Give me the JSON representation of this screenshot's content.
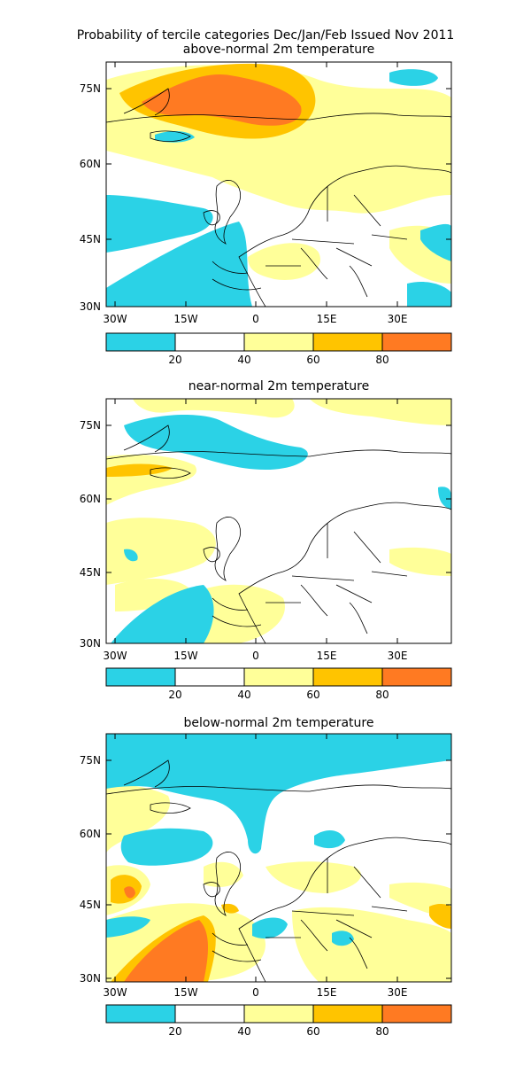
{
  "title": "Probability of tercile categories Dec/Jan/Feb Issued Nov 2011",
  "colors": {
    "cyan": "#2bd2e6",
    "white": "#ffffff",
    "light_yellow": "#ffff99",
    "orange_yellow": "#ffc400",
    "orange": "#ff7a22",
    "coast": "#000000"
  },
  "colorbar": {
    "bins": [
      {
        "color": "#2bd2e6"
      },
      {
        "color": "#ffffff"
      },
      {
        "color": "#ffff99"
      },
      {
        "color": "#ffc400"
      },
      {
        "color": "#ff7a22"
      }
    ],
    "labels": [
      "20",
      "40",
      "60",
      "80"
    ]
  },
  "axes": {
    "lat_labels": [
      "30N",
      "45N",
      "60N",
      "75N"
    ],
    "lon_labels": [
      "30W",
      "15W",
      "0",
      "15E",
      "30E"
    ]
  },
  "panels": [
    {
      "id": "above",
      "subtitle": "above-normal 2m temperature"
    },
    {
      "id": "near",
      "subtitle": "near-normal 2m temperature"
    },
    {
      "id": "below",
      "subtitle": "below-normal 2m temperature"
    }
  ]
}
